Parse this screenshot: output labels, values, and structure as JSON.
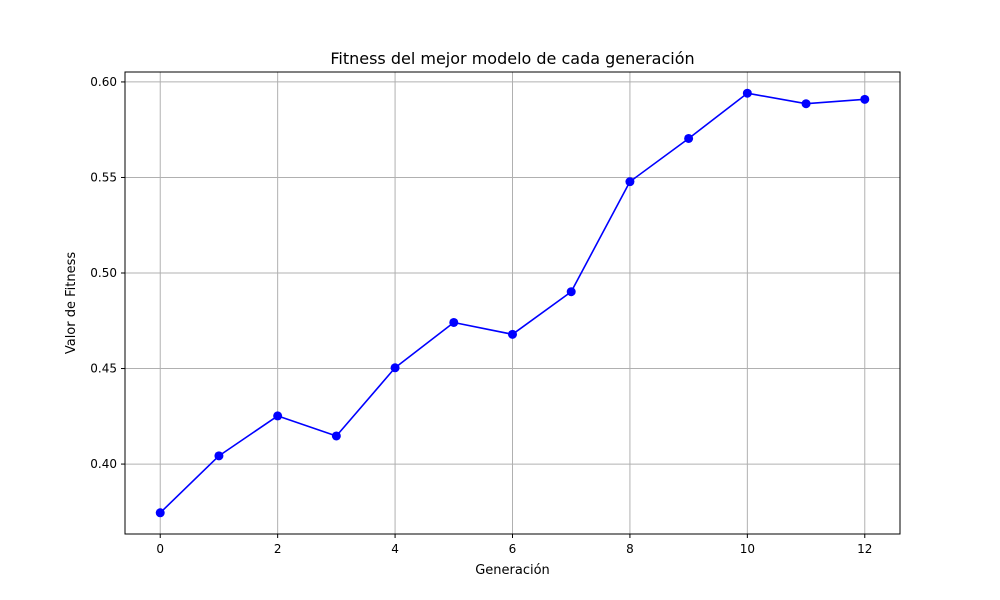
{
  "chart_data": {
    "type": "line",
    "title": "Fitness del mejor modelo de cada generación",
    "xlabel": "Generación",
    "ylabel": "Valor de Fitness",
    "x": [
      0,
      1,
      2,
      3,
      4,
      5,
      6,
      7,
      8,
      9,
      10,
      11,
      12
    ],
    "series": [
      {
        "values": [
          0.3745,
          0.4043,
          0.4252,
          0.4147,
          0.4504,
          0.4741,
          0.4679,
          0.4902,
          0.5478,
          0.5704,
          0.5941,
          0.5886,
          0.5909
        ],
        "color": "#0000ff",
        "marker": "circle"
      }
    ],
    "xlim": [
      -0.6,
      12.6
    ],
    "ylim": [
      0.3634,
      0.6052
    ],
    "xticks": [
      0,
      2,
      4,
      6,
      8,
      10,
      12
    ],
    "yticks": [
      0.4,
      0.45,
      0.5,
      0.55,
      0.6
    ],
    "xtick_labels": [
      "0",
      "2",
      "4",
      "6",
      "8",
      "10",
      "12"
    ],
    "ytick_labels": [
      "0.40",
      "0.45",
      "0.50",
      "0.55",
      "0.60"
    ],
    "grid": true,
    "legend": false
  }
}
